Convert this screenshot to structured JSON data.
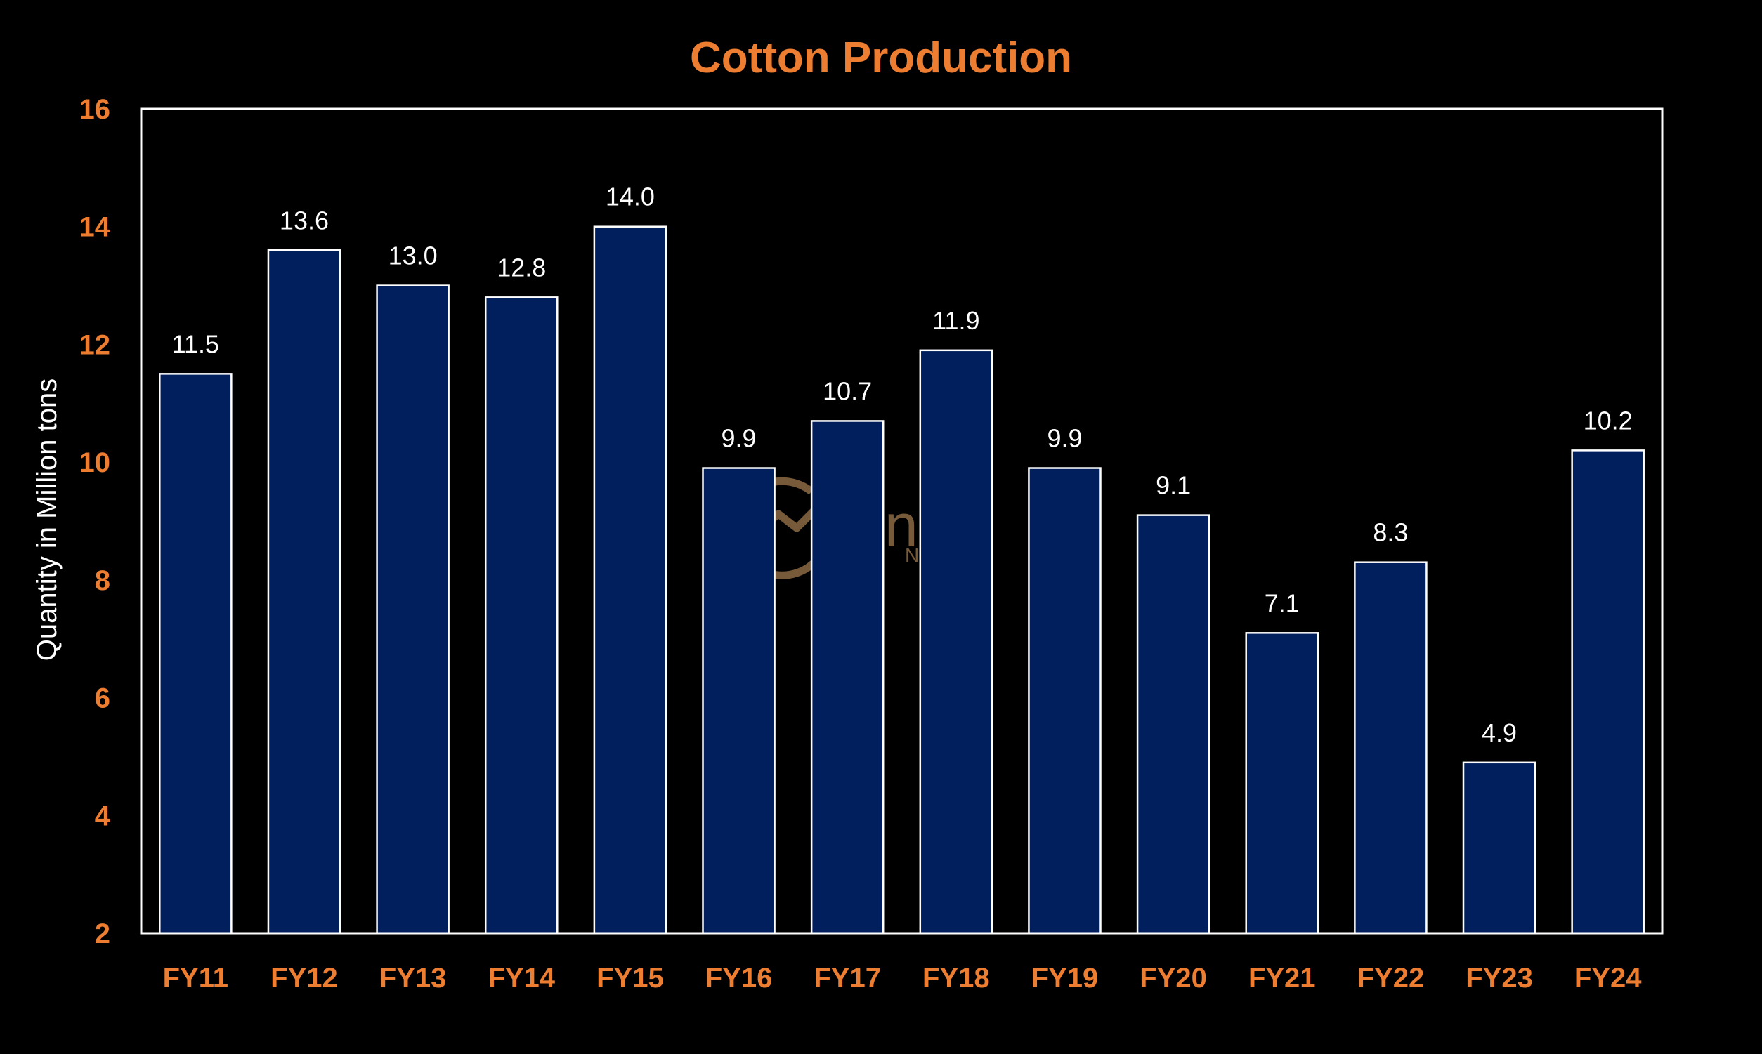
{
  "colors": {
    "background": "#000000",
    "bar_fill": "#001F5C",
    "bar_stroke": "#FFFFFF",
    "accent": "#ED7D31",
    "text": "#FFFFFF",
    "watermark": "#8B6A45"
  },
  "watermark": {
    "icon": "link-logo-icon",
    "brand": "Link",
    "sub": "News"
  },
  "chart_data": {
    "type": "bar",
    "title": "Cotton Production",
    "xlabel": "",
    "ylabel": "Quantity in Million tons",
    "ylim": [
      2,
      16
    ],
    "yticks": [
      2,
      4,
      6,
      8,
      10,
      12,
      14,
      16
    ],
    "grid": false,
    "legend": "none",
    "categories": [
      "FY11",
      "FY12",
      "FY13",
      "FY14",
      "FY15",
      "FY16",
      "FY17",
      "FY18",
      "FY19",
      "FY20",
      "FY21",
      "FY22",
      "FY23",
      "FY24"
    ],
    "values": [
      11.5,
      13.6,
      13.0,
      12.8,
      14.0,
      9.9,
      10.7,
      11.9,
      9.9,
      9.1,
      7.1,
      8.3,
      4.9,
      10.2
    ],
    "data_labels": [
      "11.5",
      "13.6",
      "13.0",
      "12.8",
      "14.0",
      "9.9",
      "10.7",
      "11.9",
      "9.9",
      "9.1",
      "7.1",
      "8.3",
      "4.9",
      "10.2"
    ]
  }
}
